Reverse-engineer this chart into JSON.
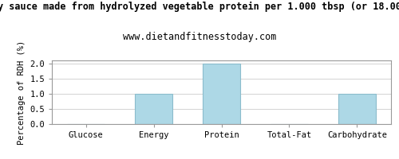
{
  "title1": "y sauce made from hydrolyzed vegetable protein per 1.000 tbsp (or 18.00",
  "title2": "www.dietandfitnesstoday.com",
  "categories": [
    "Glucose",
    "Energy",
    "Protein",
    "Total-Fat",
    "Carbohydrate"
  ],
  "values": [
    0.0,
    1.0,
    2.0,
    0.0,
    1.0
  ],
  "bar_color": "#add8e6",
  "bar_edge_color": "#8bbccc",
  "ylabel": "Percentage of RDH (%)",
  "ylim": [
    0,
    2.1
  ],
  "yticks": [
    0.0,
    0.5,
    1.0,
    1.5,
    2.0
  ],
  "background_color": "#ffffff",
  "title1_fontsize": 8.5,
  "title2_fontsize": 8.5,
  "ylabel_fontsize": 7.5,
  "tick_fontsize": 7.5,
  "font_family": "monospace",
  "grid_color": "#cccccc",
  "spine_color": "#999999"
}
